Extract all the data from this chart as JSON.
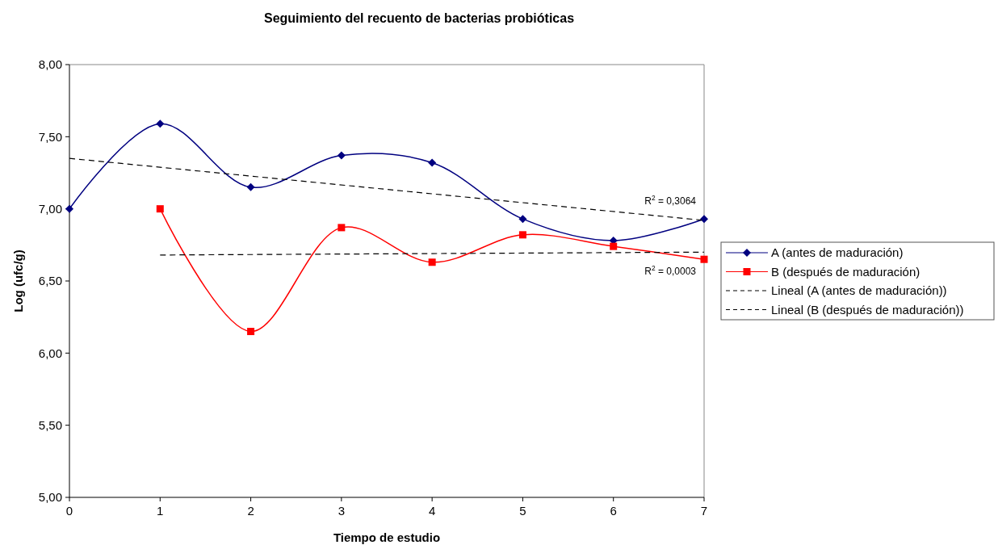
{
  "chart_data": {
    "type": "line",
    "title": "Seguimiento del recuento de bacterias probióticas",
    "xlabel": "Tiempo de estudio",
    "ylabel": "Log (ufc/g)",
    "x": [
      0,
      1,
      2,
      3,
      4,
      5,
      6,
      7
    ],
    "xlim": [
      0,
      7
    ],
    "xticks": [
      0,
      1,
      2,
      3,
      4,
      5,
      6,
      7
    ],
    "ylim": [
      5,
      8
    ],
    "yticks": [
      {
        "value": 5,
        "label": "5,00"
      },
      {
        "value": 5.5,
        "label": "5,50"
      },
      {
        "value": 6,
        "label": "6,00"
      },
      {
        "value": 6.5,
        "label": "6,50"
      },
      {
        "value": 7,
        "label": "7,00"
      },
      {
        "value": 7.5,
        "label": "7,50"
      },
      {
        "value": 8,
        "label": "8,00"
      }
    ],
    "grid": false,
    "legend": "right",
    "series": [
      {
        "name": "A (antes de maduración)",
        "color": "#000080",
        "marker": "diamond",
        "line_style": "solid",
        "values": [
          7.0,
          7.59,
          7.15,
          7.37,
          7.32,
          6.93,
          6.78,
          6.93
        ]
      },
      {
        "name": "B (después de maduración)",
        "color": "#ff0000",
        "marker": "square",
        "line_style": "solid",
        "values": [
          null,
          7.0,
          6.15,
          6.87,
          6.63,
          6.82,
          6.74,
          6.65
        ]
      },
      {
        "name": "Lineal (A (antes de maduración))",
        "color": "#000000",
        "marker": "none",
        "line_style": "dashed",
        "x": [
          0,
          7
        ],
        "values": [
          7.35,
          6.92
        ]
      },
      {
        "name": "Lineal (B (después de maduración))",
        "color": "#000000",
        "marker": "none",
        "line_style": "dashed",
        "x": [
          1,
          7
        ],
        "values": [
          6.68,
          6.7
        ]
      }
    ],
    "annotations": [
      {
        "text": "R$^{2}$ = 0,3064",
        "x": 7,
        "y": 6.92
      },
      {
        "text": "R$^{2}$ = 0,0003",
        "x": 7,
        "y": 6.7
      }
    ]
  }
}
